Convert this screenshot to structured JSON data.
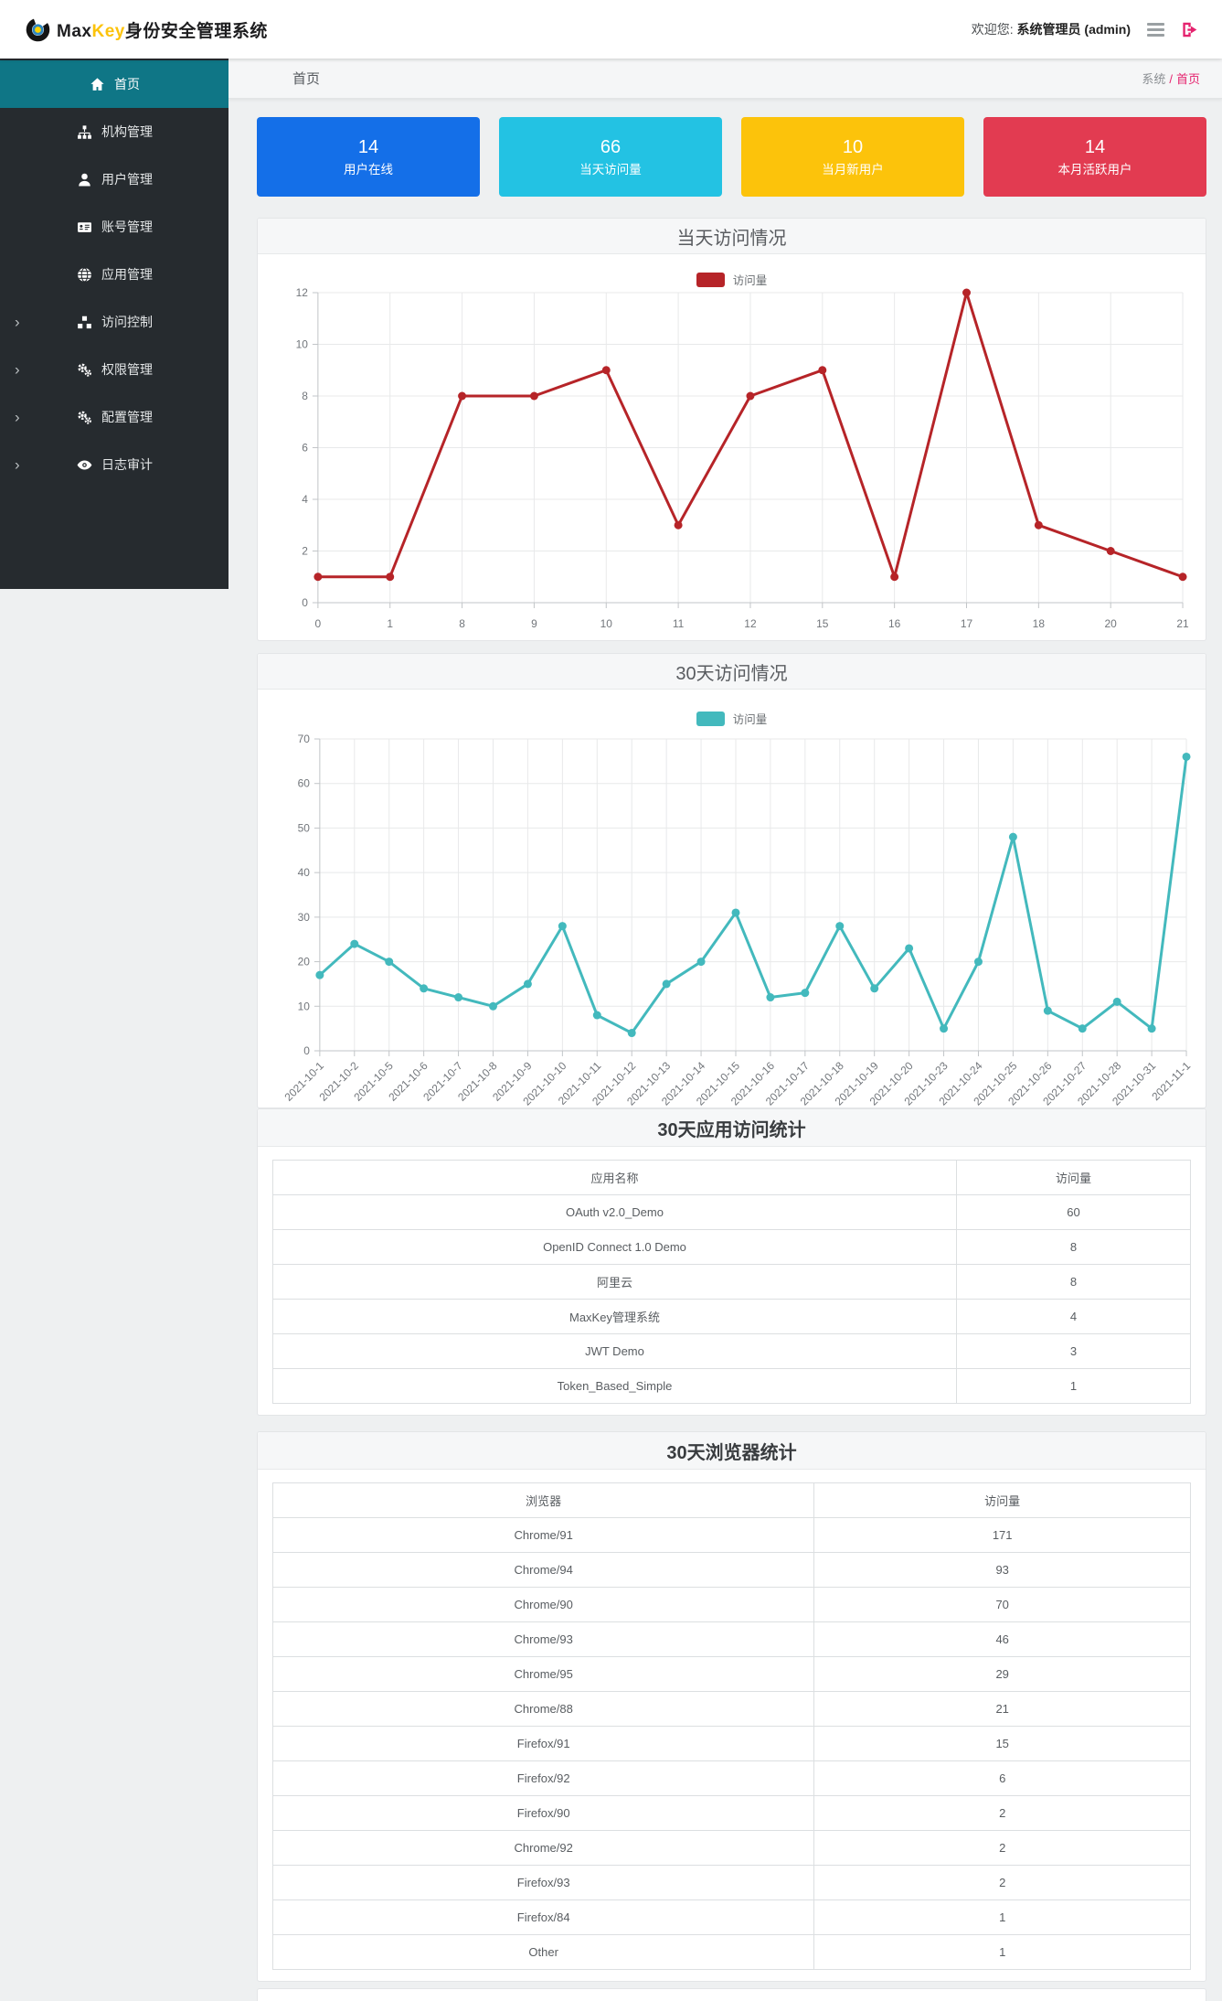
{
  "colors": {
    "accent": "#e5226e",
    "sidebar_active": "#0f7686",
    "sidebar_bg": "#262b2f",
    "brand_key": "#fcc30b"
  },
  "header": {
    "logo": {
      "brand_max": "Max",
      "brand_key": "Key",
      "brand_suffix": "身份安全管理系统"
    },
    "welcome_prefix": "欢迎您:",
    "welcome_user": "系统管理员 (admin)"
  },
  "sidebar": {
    "items": [
      {
        "label": "首页",
        "icon": "home-icon",
        "slug": "home",
        "active": true,
        "expandable": false
      },
      {
        "label": "机构管理",
        "icon": "sitemap-icon",
        "slug": "organization",
        "active": false,
        "expandable": false
      },
      {
        "label": "用户管理",
        "icon": "user-icon",
        "slug": "users",
        "active": false,
        "expandable": false
      },
      {
        "label": "账号管理",
        "icon": "id-card-icon",
        "slug": "accounts",
        "active": false,
        "expandable": false
      },
      {
        "label": "应用管理",
        "icon": "globe-icon",
        "slug": "applications",
        "active": false,
        "expandable": false
      },
      {
        "label": "访问控制",
        "icon": "cubes-icon",
        "slug": "access-control",
        "active": false,
        "expandable": true
      },
      {
        "label": "权限管理",
        "icon": "gears-icon",
        "slug": "permissions",
        "active": false,
        "expandable": true
      },
      {
        "label": "配置管理",
        "icon": "gears-icon",
        "slug": "configuration",
        "active": false,
        "expandable": true
      },
      {
        "label": "日志审计",
        "icon": "eye-icon",
        "slug": "audit-log",
        "active": false,
        "expandable": true
      }
    ]
  },
  "breadcrumb": {
    "title": "首页",
    "root": "系统",
    "separator": "/",
    "current": "首页"
  },
  "stat_cards": [
    {
      "value": "14",
      "label": "用户在线",
      "color": "#146fe8"
    },
    {
      "value": "66",
      "label": "当天访问量",
      "color": "#23c2e3"
    },
    {
      "value": "10",
      "label": "当月新用户",
      "color": "#fcc30b"
    },
    {
      "value": "14",
      "label": "本月活跃用户",
      "color": "#e23b51"
    }
  ],
  "chart_data": [
    {
      "type": "line",
      "title": "当天访问情况",
      "legend": "访问量",
      "legend_position": "top-center",
      "color": "#b62428",
      "categories": [
        "0",
        "1",
        "8",
        "9",
        "10",
        "11",
        "12",
        "15",
        "16",
        "17",
        "18",
        "20",
        "21"
      ],
      "values": [
        1,
        1,
        8,
        8,
        9,
        3,
        8,
        9,
        1,
        12,
        3,
        2,
        1
      ],
      "xlabel": "",
      "ylabel": "",
      "ylim": [
        0,
        12
      ],
      "ystep": 2,
      "grid": true
    },
    {
      "type": "line",
      "title": "30天访问情况",
      "legend": "访问量",
      "legend_position": "top-center",
      "color": "#43b9bd",
      "categories": [
        "2021-10-1",
        "2021-10-2",
        "2021-10-5",
        "2021-10-6",
        "2021-10-7",
        "2021-10-8",
        "2021-10-9",
        "2021-10-10",
        "2021-10-11",
        "2021-10-12",
        "2021-10-13",
        "2021-10-14",
        "2021-10-15",
        "2021-10-16",
        "2021-10-17",
        "2021-10-18",
        "2021-10-19",
        "2021-10-20",
        "2021-10-23",
        "2021-10-24",
        "2021-10-25",
        "2021-10-26",
        "2021-10-27",
        "2021-10-28",
        "2021-10-31",
        "2021-11-1"
      ],
      "values": [
        17,
        24,
        20,
        14,
        12,
        10,
        15,
        28,
        8,
        4,
        15,
        20,
        31,
        12,
        13,
        28,
        14,
        23,
        5,
        20,
        48,
        9,
        5,
        11,
        5,
        66
      ],
      "xlabel": "",
      "ylabel": "",
      "ylim": [
        0,
        70
      ],
      "ystep": 10,
      "grid": true,
      "x_label_rotation": -45
    }
  ],
  "app_table": {
    "title": "30天应用访问统计",
    "columns": [
      "应用名称",
      "访问量"
    ],
    "rows": [
      [
        "OAuth v2.0_Demo",
        "60"
      ],
      [
        "OpenID Connect 1.0 Demo",
        "8"
      ],
      [
        "阿里云",
        "8"
      ],
      [
        "MaxKey管理系统",
        "4"
      ],
      [
        "JWT Demo",
        "3"
      ],
      [
        "Token_Based_Simple",
        "1"
      ]
    ]
  },
  "browser_table": {
    "title": "30天浏览器统计",
    "columns": [
      "浏览器",
      "访问量"
    ],
    "rows": [
      [
        "Chrome/91",
        "171"
      ],
      [
        "Chrome/94",
        "93"
      ],
      [
        "Chrome/90",
        "70"
      ],
      [
        "Chrome/93",
        "46"
      ],
      [
        "Chrome/95",
        "29"
      ],
      [
        "Chrome/88",
        "21"
      ],
      [
        "Firefox/91",
        "15"
      ],
      [
        "Firefox/92",
        "6"
      ],
      [
        "Firefox/90",
        "2"
      ],
      [
        "Chrome/92",
        "2"
      ],
      [
        "Firefox/93",
        "2"
      ],
      [
        "Firefox/84",
        "1"
      ],
      [
        "Other",
        "1"
      ]
    ]
  }
}
